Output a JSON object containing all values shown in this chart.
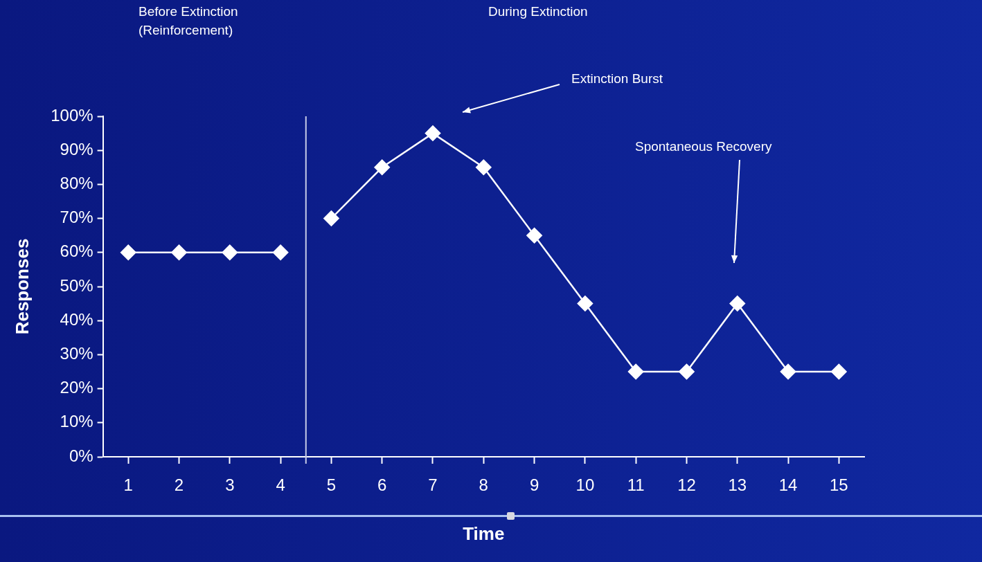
{
  "chart_data": {
    "type": "line",
    "xlabel": "Time",
    "ylabel": "Responses",
    "x": [
      1,
      2,
      3,
      4,
      5,
      6,
      7,
      8,
      9,
      10,
      11,
      12,
      13,
      14,
      15
    ],
    "series": [
      {
        "color": "#ffffff",
        "values": [
          60,
          60,
          60,
          60,
          null,
          null,
          null,
          null,
          null,
          null,
          null,
          null,
          null,
          null,
          null
        ]
      },
      {
        "color": "#ffffff",
        "values": [
          null,
          null,
          null,
          null,
          70,
          85,
          95,
          85,
          65,
          45,
          25,
          25,
          45,
          25,
          25
        ]
      }
    ],
    "xlim": [
      0.5,
      15.5
    ],
    "xticks": [
      1,
      2,
      3,
      4,
      5,
      6,
      7,
      8,
      9,
      10,
      11,
      12,
      13,
      14,
      15
    ],
    "ylim": [
      0,
      100
    ],
    "yticks": [
      {
        "value": 0,
        "label": "0%"
      },
      {
        "value": 10,
        "label": "10%"
      },
      {
        "value": 20,
        "label": "20%"
      },
      {
        "value": 30,
        "label": "30%"
      },
      {
        "value": 40,
        "label": "40%"
      },
      {
        "value": 50,
        "label": "50%"
      },
      {
        "value": 60,
        "label": "60%"
      },
      {
        "value": 70,
        "label": "70%"
      },
      {
        "value": 80,
        "label": "80%"
      },
      {
        "value": 90,
        "label": "90%"
      },
      {
        "value": 100,
        "label": "100%"
      }
    ],
    "marker": "diamond",
    "line_style": "solid",
    "ref_lines": [
      {
        "axis": "x",
        "value": 4.5,
        "color": "#c8cce8"
      }
    ],
    "annotations": [
      "Before Extinction\n(Reinforcement)",
      "During Extinction",
      "Extinction Burst",
      "Spontaneous Recovery"
    ]
  }
}
